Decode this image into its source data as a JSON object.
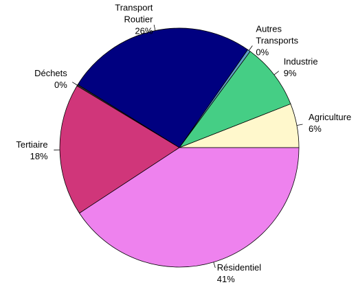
{
  "chart_data": {
    "type": "pie",
    "categories": [
      "Agriculture",
      "Industrie",
      "Autres Transports",
      "Transport Routier",
      "Déchets",
      "Tertiaire",
      "Résidentiel"
    ],
    "values": [
      6,
      9,
      0.4,
      26,
      0.2,
      18,
      41
    ],
    "value_labels": [
      "6%",
      "9%",
      "0%",
      "26%",
      "0%",
      "18%",
      "41%"
    ],
    "colors": [
      "#fff8cc",
      "#45ce85",
      "#5f9ec8",
      "#000080",
      "#333333",
      "#d0367a",
      "#ee82ee"
    ]
  }
}
